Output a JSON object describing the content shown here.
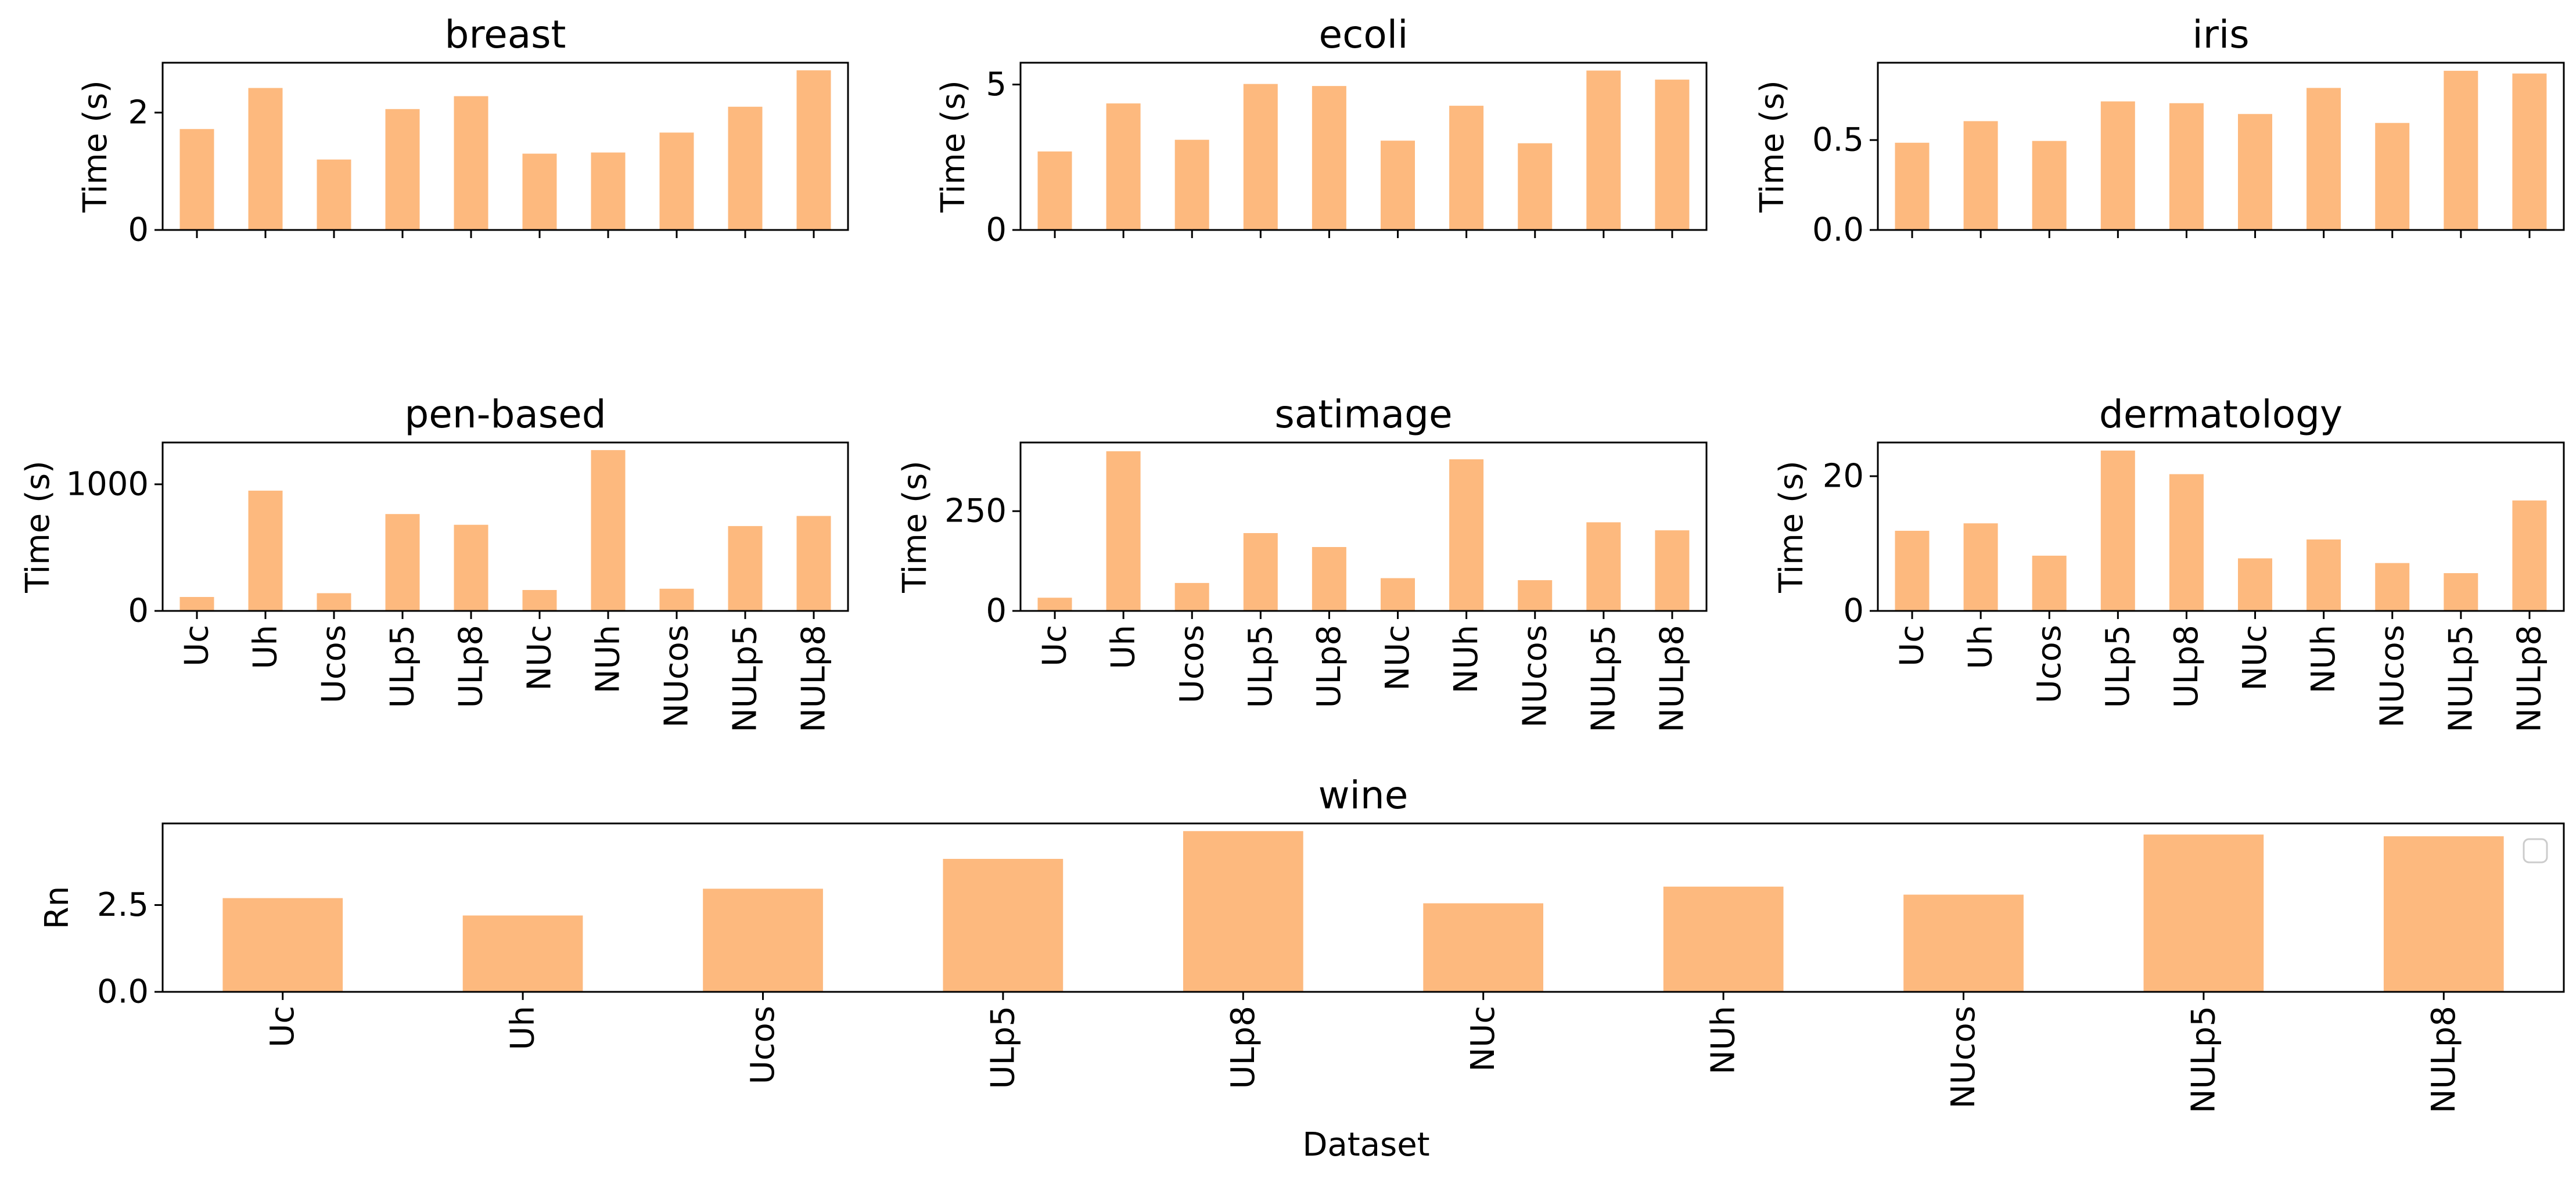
{
  "figure": {
    "xlabel": "Dataset",
    "bar_color": "#FDB97E",
    "legend": {
      "placement": "top-right",
      "entries": []
    }
  },
  "chart_data": [
    {
      "type": "bar",
      "title": "breast",
      "ylabel": "Time (s)",
      "categories": [
        "Uc",
        "Uh",
        "Ucos",
        "ULp5",
        "ULp8",
        "NUc",
        "NUh",
        "NUcos",
        "NULp5",
        "NULp8"
      ],
      "values": [
        1.72,
        2.42,
        1.2,
        2.06,
        2.28,
        1.3,
        1.32,
        1.66,
        2.1,
        2.72
      ],
      "ylim": [
        0,
        2.85
      ],
      "yticks": [
        0,
        2
      ],
      "ytick_labels": [
        "0",
        "2"
      ],
      "show_xticklabels": false
    },
    {
      "type": "bar",
      "title": "ecoli",
      "ylabel": "Time (s)",
      "categories": [
        "Uc",
        "Uh",
        "Ucos",
        "ULp5",
        "ULp8",
        "NUc",
        "NUh",
        "NUcos",
        "NULp5",
        "NULp8"
      ],
      "values": [
        2.7,
        4.35,
        3.1,
        5.02,
        4.95,
        3.07,
        4.27,
        2.98,
        5.48,
        5.17
      ],
      "ylim": [
        0,
        5.75
      ],
      "yticks": [
        0,
        5
      ],
      "ytick_labels": [
        "0",
        "5"
      ],
      "show_xticklabels": false
    },
    {
      "type": "bar",
      "title": "iris",
      "ylabel": "Time (s)",
      "categories": [
        "Uc",
        "Uh",
        "Ucos",
        "ULp5",
        "ULp8",
        "NUc",
        "NUh",
        "NUcos",
        "NULp5",
        "NULp8"
      ],
      "values": [
        0.485,
        0.605,
        0.495,
        0.715,
        0.705,
        0.645,
        0.79,
        0.595,
        0.885,
        0.87
      ],
      "ylim": [
        0,
        0.93
      ],
      "yticks": [
        0,
        0.5
      ],
      "ytick_labels": [
        "0.0",
        "0.5"
      ],
      "show_xticklabels": false
    },
    {
      "type": "bar",
      "title": "pen-based",
      "ylabel": "Time (s)",
      "categories": [
        "Uc",
        "Uh",
        "Ucos",
        "ULp5",
        "ULp8",
        "NUc",
        "NUh",
        "NUcos",
        "NULp5",
        "NULp8"
      ],
      "values": [
        110,
        950,
        140,
        765,
        680,
        165,
        1270,
        175,
        670,
        750
      ],
      "ylim": [
        0,
        1330
      ],
      "yticks": [
        0,
        1000
      ],
      "ytick_labels": [
        "0",
        "1000"
      ],
      "show_xticklabels": true
    },
    {
      "type": "bar",
      "title": "satimage",
      "ylabel": "Time (s)",
      "categories": [
        "Uc",
        "Uh",
        "Ucos",
        "ULp5",
        "ULp8",
        "NUc",
        "NUh",
        "NUcos",
        "NULp5",
        "NULp8"
      ],
      "values": [
        33,
        400,
        70,
        195,
        160,
        82,
        380,
        77,
        222,
        202
      ],
      "ylim": [
        0,
        422
      ],
      "yticks": [
        0,
        250
      ],
      "ytick_labels": [
        "0",
        "250"
      ],
      "show_xticklabels": true
    },
    {
      "type": "bar",
      "title": "dermatology",
      "ylabel": "Time (s)",
      "categories": [
        "Uc",
        "Uh",
        "Ucos",
        "ULp5",
        "ULp8",
        "NUc",
        "NUh",
        "NUcos",
        "NULp5",
        "NULp8"
      ],
      "values": [
        11.9,
        13.0,
        8.2,
        23.8,
        20.3,
        7.8,
        10.6,
        7.1,
        5.6,
        16.4
      ],
      "ylim": [
        0,
        25
      ],
      "yticks": [
        0,
        20
      ],
      "ytick_labels": [
        "0",
        "20"
      ],
      "show_xticklabels": true
    },
    {
      "type": "bar",
      "title": "wine",
      "ylabel": "Rn",
      "categories": [
        "Uc",
        "Uh",
        "Ucos",
        "ULp5",
        "ULp8",
        "NUc",
        "NUh",
        "NUcos",
        "NULp5",
        "NULp8"
      ],
      "values": [
        2.7,
        2.2,
        2.97,
        3.83,
        4.63,
        2.55,
        3.03,
        2.8,
        4.53,
        4.48
      ],
      "ylim": [
        0,
        4.85
      ],
      "yticks": [
        0,
        2.5
      ],
      "ytick_labels": [
        "0.0",
        "2.5"
      ],
      "show_xticklabels": true
    }
  ]
}
